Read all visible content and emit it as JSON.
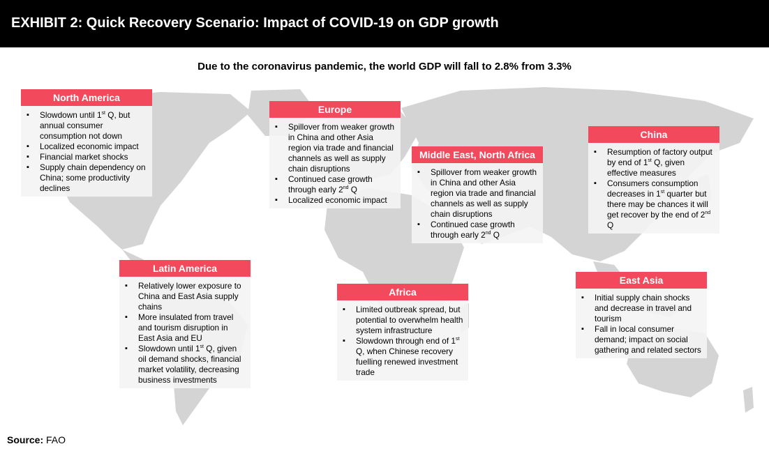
{
  "header": {
    "title": "EXHIBIT 2: Quick Recovery Scenario: Impact of COVID-19 on GDP growth"
  },
  "subtitle": "Due to the coronavirus pandemic, the world GDP will fall to 2.8% from 3.3%",
  "colors": {
    "accent": "#f2495c",
    "header_bg": "#000000",
    "map": "#d4d4d4",
    "panel_bg": "#f4f4f4"
  },
  "regions": [
    {
      "name": "North America",
      "bullets": [
        [
          "Slowdown until 1",
          "st",
          " Q, but annual consumer consumption not down"
        ],
        [
          "Localized economic impact"
        ],
        [
          "Financial market shocks"
        ],
        [
          "Supply chain dependency on China; some productivity declines"
        ]
      ]
    },
    {
      "name": "Europe",
      "bullets": [
        [
          "Spillover from weaker growth in China and other Asia region via trade and financial channels as well as supply chain disruptions"
        ],
        [
          "Continued case growth through early 2",
          "nd",
          " Q"
        ],
        [
          "Localized economic impact"
        ]
      ]
    },
    {
      "name": "Middle East, North Africa",
      "bullets": [
        [
          "Spillover from weaker growth in China and other Asia region via trade and financial channels as well as supply chain disruptions"
        ],
        [
          "Continued case growth through early 2",
          "nd",
          " Q"
        ]
      ]
    },
    {
      "name": "China",
      "bullets": [
        [
          "Resumption of factory output by end of 1",
          "st",
          " Q, given effective measures"
        ],
        [
          "Consumers consumption decreases in 1",
          "st",
          " quarter but there may be chances it will get recover by the end of 2",
          "nd",
          " Q"
        ]
      ]
    },
    {
      "name": "Latin America",
      "bullets": [
        [
          "Relatively lower exposure to China and East Asia supply chains"
        ],
        [
          "More insulated from travel and tourism disruption in East Asia and EU"
        ],
        [
          "Slowdown until 1",
          "st",
          " Q, given oil demand shocks, financial market volatility, decreasing business investments"
        ]
      ]
    },
    {
      "name": "Africa",
      "bullets": [
        [
          "Limited outbreak spread, but potential to overwhelm health system infrastructure"
        ],
        [
          "Slowdown through end of 1",
          "st",
          " Q, when Chinese recovery fuelling renewed investment trade"
        ]
      ]
    },
    {
      "name": "East Asia",
      "bullets": [
        [
          "Initial supply chain shocks and decrease in travel and tourism"
        ],
        [
          "Fall in local consumer demand; impact on social gathering and related sectors"
        ]
      ]
    }
  ],
  "source": {
    "label": "Source:",
    "value": "FAO"
  }
}
